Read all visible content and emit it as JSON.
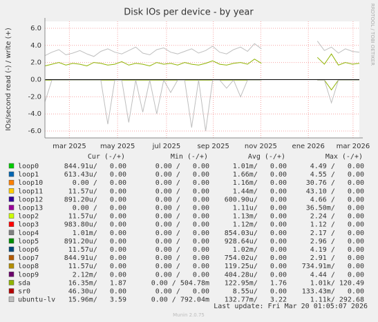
{
  "chart_data": {
    "type": "line",
    "title": "Disk IOs per device - by year",
    "y_label": "IOs/second read (-) / write (+)",
    "side_label": "RRDTOOL / TOBI OETIKER",
    "x": [
      0,
      1,
      2,
      3,
      4,
      5,
      6,
      7,
      8,
      9,
      10,
      11,
      12,
      13,
      14,
      15,
      16,
      17,
      18,
      19,
      20,
      21,
      22,
      23,
      24,
      25,
      26,
      27,
      28,
      29,
      30,
      31,
      32,
      33,
      34,
      35,
      36,
      37,
      38,
      39,
      40,
      41,
      42,
      43,
      44,
      45
    ],
    "xlim": [
      0,
      45
    ],
    "xticks": [
      {
        "value": 3.5,
        "label": "mar 2025"
      },
      {
        "value": 10.4,
        "label": "may 2025"
      },
      {
        "value": 17.4,
        "label": "jul 2025"
      },
      {
        "value": 24.1,
        "label": "sep 2025"
      },
      {
        "value": 30.9,
        "label": "nov 2025"
      },
      {
        "value": 37.7,
        "label": "ene 2026"
      },
      {
        "value": 44.1,
        "label": "mar 2026"
      }
    ],
    "ylim": [
      -6.8,
      6.8
    ],
    "yticks": [
      {
        "value": 6,
        "label": "6.0"
      },
      {
        "value": 4,
        "label": "4.0"
      },
      {
        "value": 2,
        "label": "2.0"
      },
      {
        "value": 0,
        "label": "0.0"
      },
      {
        "value": -2,
        "label": "-2.0"
      },
      {
        "value": -4,
        "label": "-4.0"
      },
      {
        "value": -6,
        "label": "-6.0"
      }
    ],
    "grid": true,
    "series": [
      {
        "color": "#8fb300",
        "values": [
          1.6,
          1.8,
          2.0,
          1.7,
          1.9,
          1.8,
          1.6,
          2.0,
          1.9,
          1.7,
          1.8,
          2.1,
          1.7,
          1.9,
          1.8,
          1.6,
          2.0,
          1.8,
          1.9,
          1.7,
          2.0,
          1.8,
          1.7,
          1.9,
          2.2,
          1.8,
          1.7,
          1.9,
          2.0,
          1.8,
          2.4,
          1.9,
          null,
          null,
          null,
          null,
          null,
          null,
          null,
          2.6,
          1.8,
          3.0,
          1.7,
          2.0,
          1.8,
          1.9
        ],
        "read_values": [
          -0.05,
          -0.05,
          -0.05,
          -0.05,
          -0.05,
          -0.05,
          -0.05,
          -0.05,
          -0.05,
          -0.05,
          -0.05,
          -0.05,
          -0.05,
          -0.05,
          -0.05,
          -0.05,
          -0.05,
          -0.05,
          -0.05,
          -0.05,
          -0.05,
          -0.05,
          -0.05,
          -0.05,
          -0.05,
          -0.05,
          -0.05,
          -0.05,
          -0.05,
          -0.05,
          -0.05,
          -0.05,
          null,
          null,
          null,
          null,
          null,
          null,
          null,
          -0.05,
          -0.05,
          -1.2,
          -0.05,
          -0.05,
          -0.05,
          -0.05
        ]
      },
      {
        "color": "#bebebe",
        "values": [
          2.8,
          3.2,
          3.5,
          2.9,
          3.1,
          3.4,
          3.0,
          2.7,
          3.3,
          3.6,
          3.2,
          3.0,
          3.4,
          3.8,
          3.1,
          2.9,
          3.5,
          3.7,
          3.2,
          3.0,
          3.3,
          3.6,
          3.1,
          3.4,
          3.9,
          3.2,
          3.0,
          3.5,
          3.8,
          3.3,
          4.2,
          3.6,
          null,
          null,
          null,
          null,
          null,
          null,
          null,
          4.5,
          3.4,
          3.8,
          3.1,
          3.6,
          3.3,
          3.2
        ],
        "read_values": [
          -2.6,
          -0.05,
          -0.05,
          -0.05,
          -0.05,
          -0.05,
          -0.05,
          -0.05,
          -0.05,
          -5.2,
          -0.05,
          -0.05,
          -5.0,
          -0.05,
          -3.8,
          -0.05,
          -4.0,
          -0.05,
          -1.5,
          -0.05,
          -0.05,
          -5.6,
          -0.05,
          -6.0,
          -0.05,
          -0.05,
          -1.0,
          -0.05,
          -2.0,
          -0.05,
          -0.05,
          -0.05,
          null,
          null,
          null,
          null,
          null,
          null,
          null,
          -0.05,
          -0.05,
          -2.7,
          -0.05,
          -0.05,
          -0.05,
          -0.05
        ]
      }
    ],
    "legend": {
      "headers": [
        "Cur (-/+)",
        "Min (-/+)",
        "Avg (-/+)",
        "Max (-/+)"
      ],
      "rows": [
        {
          "name": "loop0",
          "color": "#00cc00",
          "cur": "844.91u/   0.00",
          "min": "0.00 /   0.00",
          "avg": "1.01m/   0.00",
          "max": "4.49 /   0.00"
        },
        {
          "name": "loop1",
          "color": "#0066b3",
          "cur": "613.43u/   0.00",
          "min": "0.00 /   0.00",
          "avg": "1.66m/   0.00",
          "max": "4.55 /   0.00"
        },
        {
          "name": "loop10",
          "color": "#ff8000",
          "cur": "0.00 /   0.00",
          "min": "0.00 /   0.00",
          "avg": "1.16m/   0.00",
          "max": "30.76 /   0.00"
        },
        {
          "name": "loop11",
          "color": "#ffcc00",
          "cur": "11.57u/   0.00",
          "min": "0.00 /   0.00",
          "avg": "1.44m/   0.00",
          "max": "43.10 /   0.00"
        },
        {
          "name": "loop12",
          "color": "#330099",
          "cur": "891.20u/   0.00",
          "min": "0.00 /   0.00",
          "avg": "600.90u/   0.00",
          "max": "4.66 /   0.00"
        },
        {
          "name": "loop13",
          "color": "#990099",
          "cur": "0.00 /   0.00",
          "min": "0.00 /   0.00",
          "avg": "1.11u/   0.00",
          "max": "36.50m/   0.00"
        },
        {
          "name": "loop2",
          "color": "#ccff00",
          "cur": "11.57u/   0.00",
          "min": "0.00 /   0.00",
          "avg": "1.13m/   0.00",
          "max": "2.24 /   0.00"
        },
        {
          "name": "loop3",
          "color": "#ff0000",
          "cur": "983.80u/   0.00",
          "min": "0.00 /   0.00",
          "avg": "1.12m/   0.00",
          "max": "1.12 /   0.00"
        },
        {
          "name": "loop4",
          "color": "#808080",
          "cur": "1.01m/   0.00",
          "min": "0.00 /   0.00",
          "avg": "854.03u/   0.00",
          "max": "2.17 /   0.00"
        },
        {
          "name": "loop5",
          "color": "#008f00",
          "cur": "891.20u/   0.00",
          "min": "0.00 /   0.00",
          "avg": "928.64u/   0.00",
          "max": "2.96 /   0.00"
        },
        {
          "name": "loop6",
          "color": "#00487d",
          "cur": "11.57u/   0.00",
          "min": "0.00 /   0.00",
          "avg": "1.02m/   0.00",
          "max": "4.19 /   0.00"
        },
        {
          "name": "loop7",
          "color": "#b35a00",
          "cur": "844.91u/   0.00",
          "min": "0.00 /   0.00",
          "avg": "754.02u/   0.00",
          "max": "2.91 /   0.00"
        },
        {
          "name": "loop8",
          "color": "#b38f00",
          "cur": "11.57u/   0.00",
          "min": "0.00 /   0.00",
          "avg": "119.25u/   0.00",
          "max": "734.91m/   0.00"
        },
        {
          "name": "loop9",
          "color": "#6b006b",
          "cur": "2.12m/   0.00",
          "min": "0.00 /   0.00",
          "avg": "404.28u/   0.00",
          "max": "4.44 /   0.00"
        },
        {
          "name": "sda",
          "color": "#8fb300",
          "cur": "16.35m/   1.87",
          "min": "0.00 / 504.78m",
          "avg": "122.95m/   1.76",
          "max": "1.01k/ 120.49"
        },
        {
          "name": "sr0",
          "color": "#b30000",
          "cur": "46.30u/   0.00",
          "min": "0.00 /   0.00",
          "avg": "8.55u/   0.00",
          "max": "133.43m/   0.00"
        },
        {
          "name": "ubuntu-lv",
          "color": "#bebebe",
          "cur": "15.96m/   3.59",
          "min": "0.00 / 792.04m",
          "avg": "132.77m/   3.22",
          "max": "1.11k/ 292.68"
        }
      ]
    },
    "last_update": "Last update: Fri Mar 20 01:05:07 2026",
    "footer": "Munin 2.0.75"
  }
}
